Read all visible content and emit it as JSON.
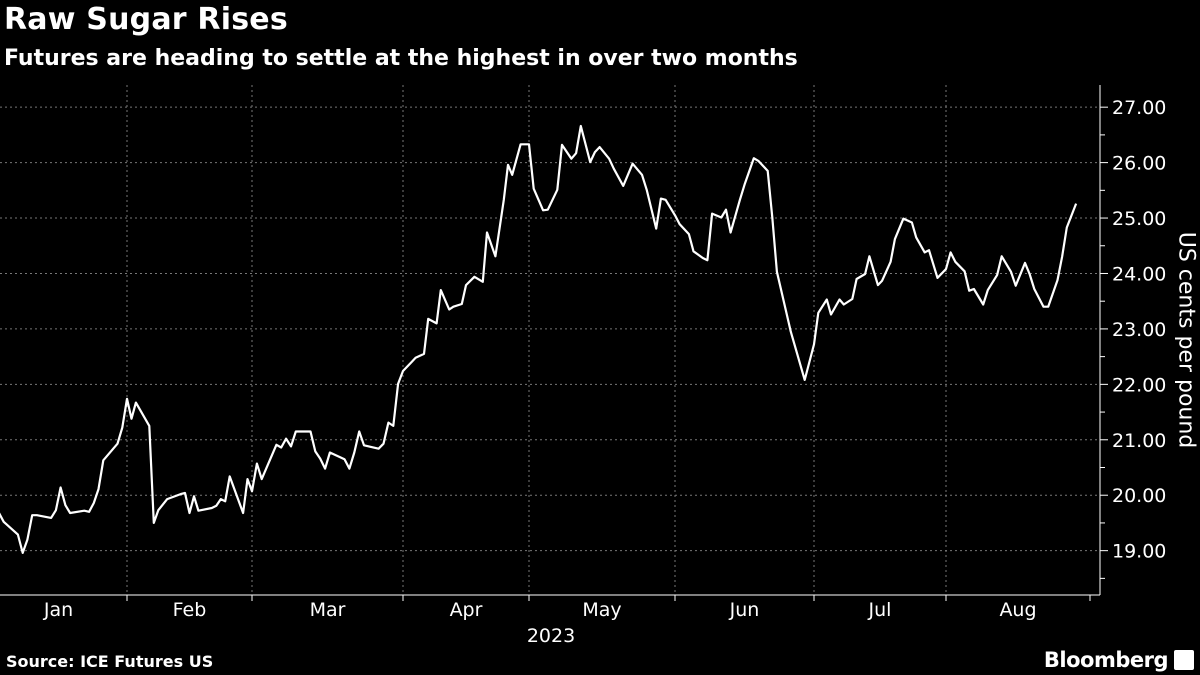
{
  "header": {
    "title": "Raw Sugar Rises",
    "subtitle": "Futures are heading to settle at the highest in over two months"
  },
  "footer": {
    "source": "Source: ICE Futures US",
    "logo": "Bloomberg"
  },
  "colors": {
    "background": "#000000",
    "line": "#ffffff",
    "grid": "#777777"
  },
  "chart_data": {
    "type": "line",
    "title": "Raw Sugar Rises",
    "subtitle": "Futures are heading to settle at the highest in over two months",
    "xlabel": "2023",
    "ylabel": "US cents per pound",
    "x_tick_labels": [
      "Jan",
      "Feb",
      "Mar",
      "Apr",
      "May",
      "Jun",
      "Jul",
      "Aug"
    ],
    "y_tick_labels": [
      "19.00",
      "20.00",
      "21.00",
      "22.00",
      "23.00",
      "24.00",
      "25.00",
      "26.00",
      "27.00"
    ],
    "y_ticks": [
      19,
      20,
      21,
      22,
      23,
      24,
      25,
      26,
      27
    ],
    "ylim": [
      18.2,
      27.4
    ],
    "xlim": [
      "2023-01-01",
      "2023-09-01"
    ],
    "y_axis_side": "right",
    "grid": true,
    "legend": "none",
    "series": [
      {
        "points": [
          [
            "2023-01-05",
            19.68
          ],
          [
            "2023-01-06",
            19.52
          ],
          [
            "2023-01-09",
            19.29
          ],
          [
            "2023-01-10",
            18.96
          ],
          [
            "2023-01-11",
            19.2
          ],
          [
            "2023-01-12",
            19.64
          ],
          [
            "2023-01-13",
            19.64
          ],
          [
            "2023-01-16",
            19.59
          ],
          [
            "2023-01-17",
            19.73
          ],
          [
            "2023-01-18",
            20.14
          ],
          [
            "2023-01-19",
            19.82
          ],
          [
            "2023-01-20",
            19.68
          ],
          [
            "2023-01-23",
            19.72
          ],
          [
            "2023-01-24",
            19.7
          ],
          [
            "2023-01-25",
            19.86
          ],
          [
            "2023-01-26",
            20.11
          ],
          [
            "2023-01-27",
            20.63
          ],
          [
            "2023-01-30",
            20.93
          ],
          [
            "2023-01-31",
            21.22
          ],
          [
            "2023-02-01",
            21.74
          ],
          [
            "2023-02-02",
            21.38
          ],
          [
            "2023-02-03",
            21.67
          ],
          [
            "2023-02-06",
            21.25
          ],
          [
            "2023-02-07",
            19.5
          ],
          [
            "2023-02-08",
            19.73
          ],
          [
            "2023-02-10",
            19.93
          ],
          [
            "2023-02-13",
            20.02
          ],
          [
            "2023-02-14",
            20.04
          ],
          [
            "2023-02-15",
            19.68
          ],
          [
            "2023-02-16",
            19.98
          ],
          [
            "2023-02-17",
            19.72
          ],
          [
            "2023-02-20",
            19.77
          ],
          [
            "2023-02-21",
            19.81
          ],
          [
            "2023-02-22",
            19.93
          ],
          [
            "2023-02-23",
            19.89
          ],
          [
            "2023-02-24",
            20.34
          ],
          [
            "2023-02-27",
            19.68
          ],
          [
            "2023-02-28",
            20.29
          ],
          [
            "2023-03-01",
            20.07
          ],
          [
            "2023-03-02",
            20.57
          ],
          [
            "2023-03-03",
            20.29
          ],
          [
            "2023-03-06",
            20.91
          ],
          [
            "2023-03-07",
            20.86
          ],
          [
            "2023-03-08",
            21.02
          ],
          [
            "2023-03-09",
            20.88
          ],
          [
            "2023-03-10",
            21.15
          ],
          [
            "2023-03-13",
            21.15
          ],
          [
            "2023-03-14",
            20.79
          ],
          [
            "2023-03-15",
            20.66
          ],
          [
            "2023-03-16",
            20.48
          ],
          [
            "2023-03-17",
            20.77
          ],
          [
            "2023-03-20",
            20.65
          ],
          [
            "2023-03-21",
            20.48
          ],
          [
            "2023-03-22",
            20.77
          ],
          [
            "2023-03-23",
            21.15
          ],
          [
            "2023-03-24",
            20.9
          ],
          [
            "2023-03-27",
            20.84
          ],
          [
            "2023-03-28",
            20.93
          ],
          [
            "2023-03-29",
            21.31
          ],
          [
            "2023-03-30",
            21.25
          ],
          [
            "2023-03-31",
            22.01
          ],
          [
            "2023-04-01",
            22.24
          ],
          [
            "2023-04-03",
            22.4
          ],
          [
            "2023-04-04",
            22.48
          ],
          [
            "2023-04-06",
            22.55
          ],
          [
            "2023-04-07",
            23.18
          ],
          [
            "2023-04-09",
            23.1
          ],
          [
            "2023-04-10",
            23.7
          ],
          [
            "2023-04-12",
            23.35
          ],
          [
            "2023-04-13",
            23.4
          ],
          [
            "2023-04-15",
            23.45
          ],
          [
            "2023-04-16",
            23.79
          ],
          [
            "2023-04-18",
            23.94
          ],
          [
            "2023-04-20",
            23.85
          ],
          [
            "2023-04-21",
            24.74
          ],
          [
            "2023-04-23",
            24.31
          ],
          [
            "2023-04-25",
            25.33
          ],
          [
            "2023-04-26",
            25.96
          ],
          [
            "2023-04-27",
            25.78
          ],
          [
            "2023-04-29",
            26.33
          ],
          [
            "2023-05-01",
            26.33
          ],
          [
            "2023-05-02",
            25.53
          ],
          [
            "2023-05-04",
            25.14
          ],
          [
            "2023-05-05",
            25.15
          ],
          [
            "2023-05-07",
            25.51
          ],
          [
            "2023-05-08",
            26.32
          ],
          [
            "2023-05-10",
            26.07
          ],
          [
            "2023-05-11",
            26.17
          ],
          [
            "2023-05-12",
            26.66
          ],
          [
            "2023-05-14",
            26.01
          ],
          [
            "2023-05-15",
            26.19
          ],
          [
            "2023-05-16",
            26.28
          ],
          [
            "2023-05-18",
            26.07
          ],
          [
            "2023-05-19",
            25.89
          ],
          [
            "2023-05-21",
            25.58
          ],
          [
            "2023-05-22",
            25.78
          ],
          [
            "2023-05-23",
            25.98
          ],
          [
            "2023-05-25",
            25.78
          ],
          [
            "2023-05-26",
            25.51
          ],
          [
            "2023-05-28",
            24.81
          ],
          [
            "2023-05-29",
            25.35
          ],
          [
            "2023-05-30",
            25.33
          ],
          [
            "2023-06-01",
            25.05
          ],
          [
            "2023-06-02",
            24.89
          ],
          [
            "2023-06-04",
            24.71
          ],
          [
            "2023-06-05",
            24.4
          ],
          [
            "2023-06-07",
            24.28
          ],
          [
            "2023-06-08",
            24.24
          ],
          [
            "2023-06-09",
            25.08
          ],
          [
            "2023-06-11",
            25.01
          ],
          [
            "2023-06-12",
            25.15
          ],
          [
            "2023-06-13",
            24.74
          ],
          [
            "2023-06-15",
            25.33
          ],
          [
            "2023-06-16",
            25.6
          ],
          [
            "2023-06-18",
            26.08
          ],
          [
            "2023-06-19",
            26.03
          ],
          [
            "2023-06-21",
            25.85
          ],
          [
            "2023-06-22",
            25.01
          ],
          [
            "2023-06-23",
            24.03
          ],
          [
            "2023-06-26",
            22.95
          ],
          [
            "2023-06-29",
            22.08
          ],
          [
            "2023-07-01",
            22.72
          ],
          [
            "2023-07-02",
            23.29
          ],
          [
            "2023-07-04",
            23.53
          ],
          [
            "2023-07-05",
            23.26
          ],
          [
            "2023-07-07",
            23.53
          ],
          [
            "2023-07-08",
            23.44
          ],
          [
            "2023-07-10",
            23.54
          ],
          [
            "2023-07-11",
            23.9
          ],
          [
            "2023-07-13",
            23.99
          ],
          [
            "2023-07-14",
            24.31
          ],
          [
            "2023-07-16",
            23.79
          ],
          [
            "2023-07-17",
            23.87
          ],
          [
            "2023-07-19",
            24.21
          ],
          [
            "2023-07-20",
            24.62
          ],
          [
            "2023-07-22",
            24.99
          ],
          [
            "2023-07-24",
            24.92
          ],
          [
            "2023-07-25",
            24.65
          ],
          [
            "2023-07-27",
            24.38
          ],
          [
            "2023-07-28",
            24.42
          ],
          [
            "2023-07-30",
            23.92
          ],
          [
            "2023-08-01",
            24.08
          ],
          [
            "2023-08-02",
            24.38
          ],
          [
            "2023-08-03",
            24.21
          ],
          [
            "2023-08-05",
            24.04
          ],
          [
            "2023-08-06",
            23.69
          ],
          [
            "2023-08-07",
            23.72
          ],
          [
            "2023-08-09",
            23.44
          ],
          [
            "2023-08-10",
            23.7
          ],
          [
            "2023-08-12",
            23.97
          ],
          [
            "2023-08-13",
            24.31
          ],
          [
            "2023-08-15",
            24.03
          ],
          [
            "2023-08-16",
            23.78
          ],
          [
            "2023-08-18",
            24.19
          ],
          [
            "2023-08-19",
            23.99
          ],
          [
            "2023-08-20",
            23.72
          ],
          [
            "2023-08-22",
            23.4
          ],
          [
            "2023-08-23",
            23.4
          ],
          [
            "2023-08-25",
            23.88
          ],
          [
            "2023-08-26",
            24.3
          ],
          [
            "2023-08-27",
            24.83
          ],
          [
            "2023-08-29",
            25.26
          ]
        ]
      }
    ]
  }
}
